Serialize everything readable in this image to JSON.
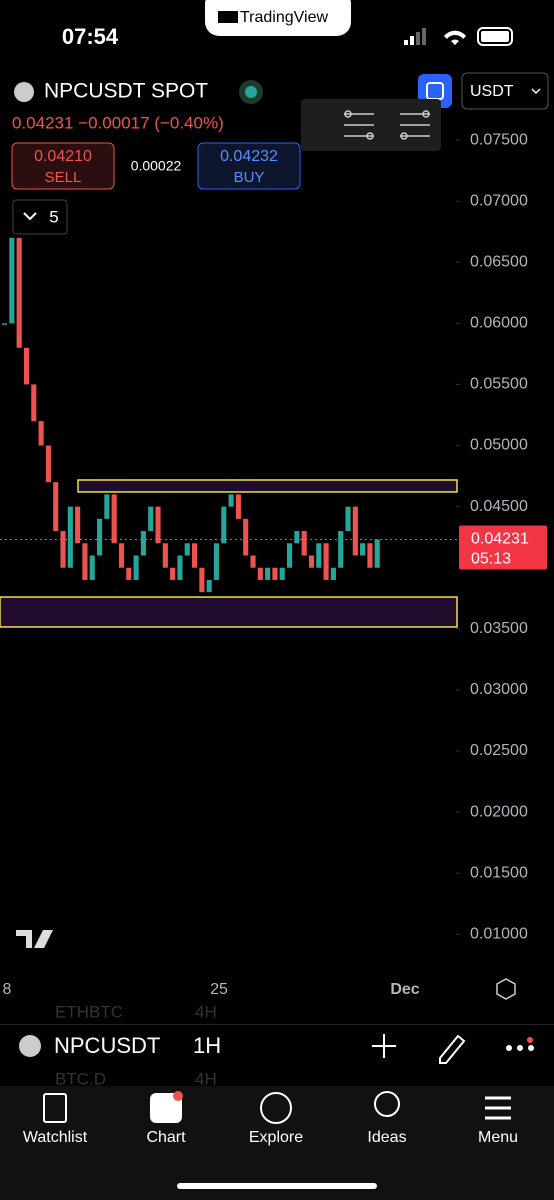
{
  "status_bar": {
    "time": "07:54",
    "app_pill": "TradingView"
  },
  "header": {
    "symbol": "NPCUSDT SPOT",
    "quote": "0.04231 −0.00017 (−0.40%)",
    "sell_price": "0.04210",
    "sell_label": "SELL",
    "spread": "0.00022",
    "buy_price": "0.04232",
    "buy_label": "BUY",
    "indicators_count": "5",
    "currency": "USDT"
  },
  "chart": {
    "type": "candlestick",
    "ylim": [
      0.00667,
      0.08155
    ],
    "yticks": [
      {
        "value": 0.075,
        "label": "0.07500"
      },
      {
        "value": 0.07,
        "label": "0.07000"
      },
      {
        "value": 0.065,
        "label": "0.06500"
      },
      {
        "value": 0.06,
        "label": "0.06000"
      },
      {
        "value": 0.055,
        "label": "0.05500"
      },
      {
        "value": 0.05,
        "label": "0.05000"
      },
      {
        "value": 0.045,
        "label": "0.04500"
      },
      {
        "value": 0.035,
        "label": "0.03500"
      },
      {
        "value": 0.03,
        "label": "0.03000"
      },
      {
        "value": 0.025,
        "label": "0.02500"
      },
      {
        "value": 0.02,
        "label": "0.02000"
      },
      {
        "value": 0.015,
        "label": "0.01500"
      },
      {
        "value": 0.01,
        "label": "0.01000"
      }
    ],
    "x_labels": [
      "8",
      "25",
      "Dec"
    ],
    "closes": [
      0.06,
      0.067,
      0.058,
      0.055,
      0.052,
      0.05,
      0.047,
      0.043,
      0.04,
      0.045,
      0.042,
      0.039,
      0.041,
      0.044,
      0.046,
      0.042,
      0.04,
      0.039,
      0.041,
      0.043,
      0.045,
      0.042,
      0.04,
      0.039,
      0.041,
      0.042,
      0.04,
      0.038,
      0.039,
      0.042,
      0.045,
      0.046,
      0.044,
      0.041,
      0.04,
      0.039,
      0.04,
      0.039,
      0.04,
      0.042,
      0.043,
      0.041,
      0.04,
      0.042,
      0.039,
      0.04,
      0.043,
      0.045,
      0.041,
      0.042,
      0.04,
      0.04231
    ],
    "zones": [
      {
        "top": 0.04718,
        "bottom": 0.0462
      },
      {
        "top": 0.0376,
        "bottom": 0.03515
      }
    ],
    "last_price": {
      "value": 0.04231,
      "label": "0.04231",
      "countdown": "05:13"
    },
    "up_color": "#26a69a",
    "down_color": "#ef5350"
  },
  "symbol_bar": {
    "symbol": "NPCUSDT",
    "interval": "1H",
    "ghost_1": "ETHBTC",
    "ghost_1_interval": "4H",
    "ghost_2": "BTC.D",
    "ghost_2_interval": "4H"
  },
  "nav": [
    "Watchlist",
    "Chart",
    "Explore",
    "Ideas",
    "Menu"
  ]
}
